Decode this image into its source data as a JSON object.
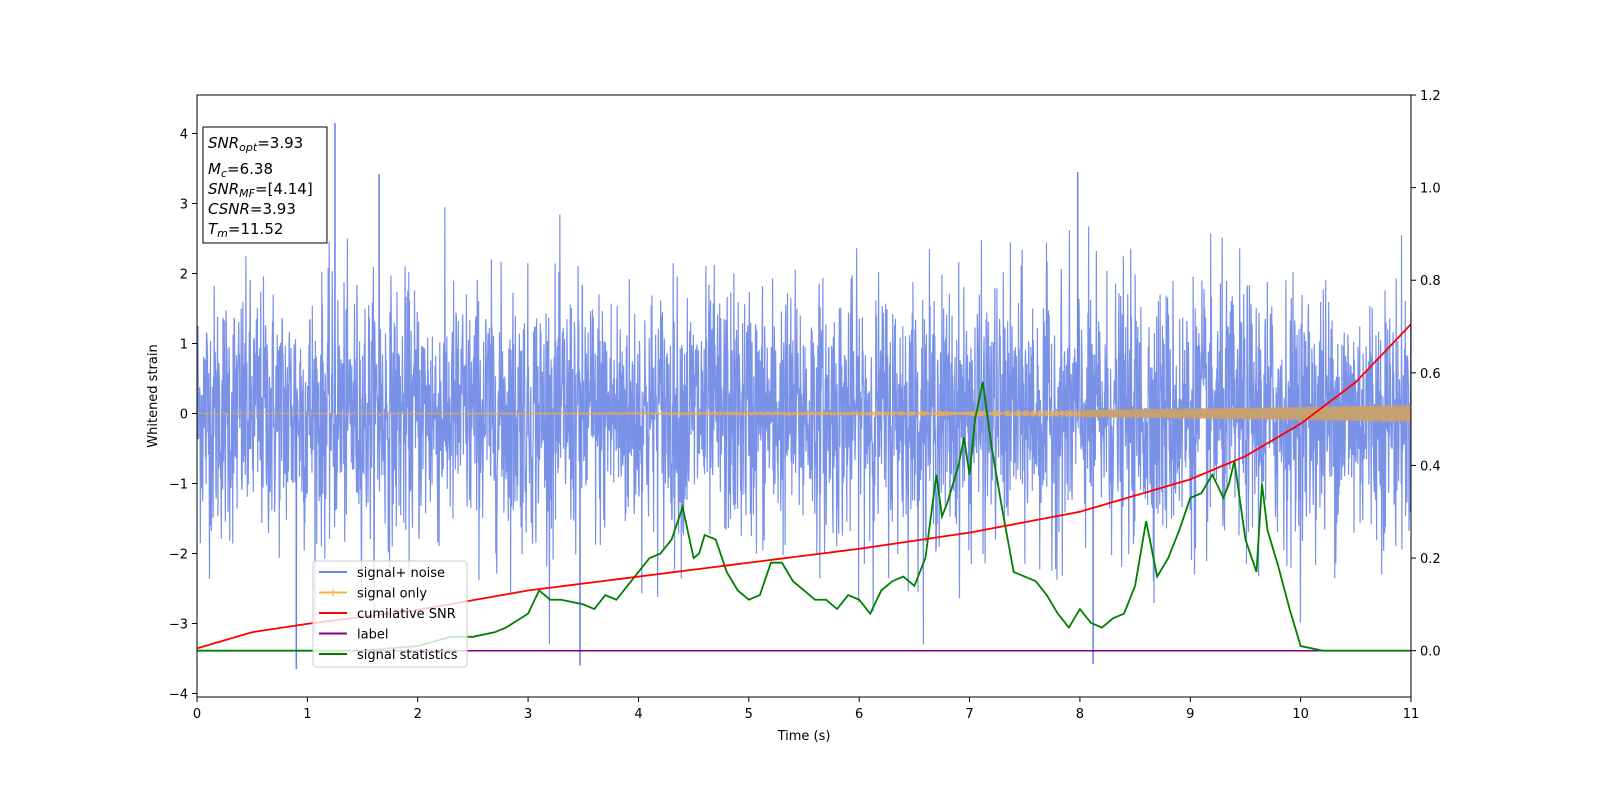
{
  "chart_data": {
    "type": "line",
    "xlabel": "Time (s)",
    "ylabel": "Whitened strain",
    "xlim": [
      0,
      11
    ],
    "ylim_left": [
      -4.05,
      4.55
    ],
    "ylim_right": [
      -0.1,
      1.2
    ],
    "x_ticks": [
      0,
      1,
      2,
      3,
      4,
      5,
      6,
      7,
      8,
      9,
      10,
      11
    ],
    "y_ticks_left": [
      -4,
      -3,
      -2,
      -1,
      0,
      1,
      2,
      3,
      4
    ],
    "y_ticks_right": [
      0.0,
      0.2,
      0.4,
      0.6,
      0.8,
      1.0,
      1.2
    ],
    "x_tick_labels": [
      "0",
      "1",
      "2",
      "3",
      "4",
      "5",
      "6",
      "7",
      "8",
      "9",
      "10",
      "11"
    ],
    "y_tick_labels_left": [
      "−4",
      "−3",
      "−2",
      "−1",
      "0",
      "1",
      "2",
      "3",
      "4"
    ],
    "y_tick_labels_right": [
      "0.0",
      "0.2",
      "0.4",
      "0.6",
      "0.8",
      "1.0",
      "1.2"
    ],
    "grid": false,
    "legend_position": "lower-left",
    "series": [
      {
        "name": "signal+ noise",
        "color": "#6b85e6",
        "axis": "left",
        "description": "dense whitened noise, standard deviation ~0.9, range approx -3.6 to 4.2",
        "noise_std": 0.9,
        "notable_points": [
          [
            1.25,
            4.15
          ],
          [
            0.9,
            -3.65
          ],
          [
            3.47,
            -3.6
          ],
          [
            8.12,
            -3.58
          ],
          [
            1.65,
            3.42
          ],
          [
            7.98,
            3.45
          ]
        ]
      },
      {
        "name": "signal only",
        "color": "#f5b041",
        "axis": "left",
        "description": "chirp growing in amplitude toward t=11",
        "amplitude_start": 0.01,
        "amplitude_end": 0.12
      },
      {
        "name": "cumilative SNR",
        "color": "#ff0000",
        "axis": "right",
        "x": [
          0,
          0.5,
          1,
          2,
          3,
          4,
          5,
          6,
          7,
          8,
          9,
          9.5,
          10,
          10.5,
          11
        ],
        "y": [
          0.005,
          0.04,
          0.058,
          0.088,
          0.13,
          0.16,
          0.19,
          0.22,
          0.255,
          0.3,
          0.37,
          0.42,
          0.49,
          0.58,
          0.705
        ]
      },
      {
        "name": "label",
        "color": "#800080",
        "axis": "right",
        "x": [
          0,
          11
        ],
        "y": [
          0.0,
          0.0
        ]
      },
      {
        "name": "signal statistics",
        "color": "#008000",
        "axis": "right",
        "x": [
          0,
          0.5,
          1.0,
          1.5,
          2.0,
          2.3,
          2.5,
          2.7,
          2.8,
          3.0,
          3.1,
          3.2,
          3.3,
          3.5,
          3.6,
          3.7,
          3.8,
          3.9,
          4.0,
          4.1,
          4.2,
          4.3,
          4.4,
          4.5,
          4.55,
          4.6,
          4.7,
          4.8,
          4.9,
          5.0,
          5.1,
          5.2,
          5.3,
          5.4,
          5.5,
          5.6,
          5.7,
          5.8,
          5.9,
          6.0,
          6.1,
          6.2,
          6.3,
          6.4,
          6.5,
          6.6,
          6.7,
          6.75,
          6.8,
          6.9,
          6.95,
          7.0,
          7.05,
          7.12,
          7.2,
          7.3,
          7.4,
          7.5,
          7.6,
          7.7,
          7.8,
          7.9,
          8.0,
          8.1,
          8.2,
          8.3,
          8.4,
          8.5,
          8.6,
          8.7,
          8.8,
          8.9,
          9.0,
          9.1,
          9.2,
          9.3,
          9.35,
          9.4,
          9.5,
          9.6,
          9.65,
          9.7,
          9.8,
          9.9,
          10.0,
          10.2,
          11.0
        ],
        "y": [
          0.0,
          0.0,
          0.0,
          0.0,
          0.01,
          0.03,
          0.03,
          0.04,
          0.05,
          0.08,
          0.13,
          0.11,
          0.11,
          0.1,
          0.09,
          0.12,
          0.11,
          0.14,
          0.17,
          0.2,
          0.21,
          0.24,
          0.31,
          0.2,
          0.21,
          0.25,
          0.24,
          0.17,
          0.13,
          0.11,
          0.12,
          0.19,
          0.19,
          0.15,
          0.13,
          0.11,
          0.11,
          0.09,
          0.12,
          0.11,
          0.08,
          0.13,
          0.15,
          0.16,
          0.14,
          0.2,
          0.38,
          0.29,
          0.32,
          0.4,
          0.46,
          0.38,
          0.5,
          0.58,
          0.44,
          0.3,
          0.17,
          0.16,
          0.15,
          0.12,
          0.08,
          0.05,
          0.09,
          0.06,
          0.05,
          0.07,
          0.08,
          0.14,
          0.28,
          0.16,
          0.2,
          0.26,
          0.33,
          0.34,
          0.38,
          0.33,
          0.36,
          0.41,
          0.24,
          0.17,
          0.36,
          0.26,
          0.18,
          0.09,
          0.01,
          0.0,
          0.0
        ]
      }
    ]
  },
  "info_box": {
    "line1": {
      "sym": "SNR",
      "sub": "opt",
      "val": "=3.93"
    },
    "line2": {
      "sym": "M",
      "sub": "c",
      "val": "=6.38"
    },
    "line3": {
      "sym": "SNR",
      "sub": "MF",
      "val": "=[4.14]"
    },
    "line4": {
      "sym": "CSNR",
      "sub": "",
      "val": "=3.93"
    },
    "line5": {
      "sym": "T",
      "sub": "m",
      "val": "=11.52"
    }
  }
}
